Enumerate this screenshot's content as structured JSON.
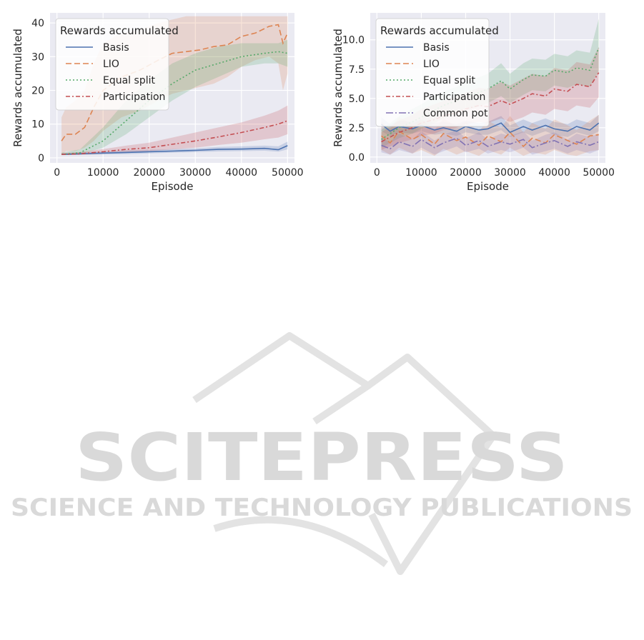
{
  "watermark": {
    "main": "SCITEPRESS",
    "sub": "SCIENCE AND TECHNOLOGY PUBLICATIONS",
    "color": "#d9d9d9"
  },
  "colors": {
    "panel_bg": "#eaeaf2",
    "grid": "#ffffff",
    "text": "#262626"
  },
  "chart_data": [
    {
      "type": "line",
      "xlabel": "Episode",
      "ylabel": "Rewards accumulated",
      "xlim": [
        -1500,
        51500
      ],
      "ylim": [
        -1.5,
        43
      ],
      "xticks": [
        0,
        10000,
        20000,
        30000,
        40000,
        50000
      ],
      "xtick_labels": [
        "0",
        "10000",
        "20000",
        "30000",
        "40000",
        "50000"
      ],
      "yticks": [
        0,
        10,
        20,
        30,
        40
      ],
      "ytick_labels": [
        "0",
        "10",
        "20",
        "30",
        "40"
      ],
      "grid": true,
      "legend": {
        "title": "Rewards accumulated",
        "placement": "upper-left"
      },
      "series": [
        {
          "name": "Basis",
          "color": "#4c72b0",
          "dash": "solid",
          "x": [
            1000,
            5000,
            10000,
            15000,
            20000,
            25000,
            30000,
            35000,
            40000,
            45000,
            48000,
            50000
          ],
          "y": [
            1,
            1.2,
            1.4,
            1.6,
            1.8,
            2.0,
            2.2,
            2.5,
            2.6,
            2.8,
            2.4,
            3.6
          ],
          "lower": [
            0.8,
            0.9,
            1.0,
            1.1,
            1.3,
            1.5,
            1.7,
            1.9,
            2.0,
            2.1,
            1.8,
            2.5
          ],
          "upper": [
            1.3,
            1.6,
            1.9,
            2.2,
            2.4,
            2.6,
            2.8,
            3.2,
            3.4,
            3.6,
            3.4,
            4.8
          ]
        },
        {
          "name": "LIO",
          "color": "#dd8452",
          "dash": "8 4",
          "x": [
            1000,
            2000,
            4000,
            6000,
            8000,
            10000,
            14000,
            18000,
            22000,
            25000,
            28000,
            31000,
            34000,
            37000,
            40000,
            43000,
            46000,
            48000,
            49000,
            50000
          ],
          "y": [
            5,
            7,
            7,
            9,
            15,
            20,
            24,
            26,
            29,
            31,
            31.5,
            32,
            33,
            33.5,
            36,
            37,
            39,
            39.5,
            34,
            37
          ],
          "lower": [
            1,
            2,
            2,
            3,
            5,
            8,
            12,
            14,
            17,
            19,
            20,
            21,
            22,
            24,
            27,
            29,
            30,
            28,
            20,
            25
          ],
          "upper": [
            12,
            15,
            17,
            20,
            28,
            34,
            37,
            38,
            40,
            41,
            42,
            42,
            42,
            42,
            42,
            42,
            42,
            42,
            42,
            42
          ]
        },
        {
          "name": "Equal split",
          "color": "#55a868",
          "dash": "2 3",
          "x": [
            1000,
            5000,
            10000,
            15000,
            20000,
            25000,
            30000,
            35000,
            40000,
            45000,
            48000,
            50000
          ],
          "y": [
            1,
            1.5,
            5,
            11,
            17,
            22,
            26,
            28,
            30,
            31,
            31.5,
            31
          ],
          "lower": [
            0.8,
            1.0,
            3,
            7,
            12,
            17,
            21,
            24,
            27,
            28,
            28,
            27
          ],
          "upper": [
            1.5,
            2.5,
            9,
            17,
            23,
            28,
            31,
            33,
            34,
            34,
            34,
            35
          ]
        },
        {
          "name": "Participation",
          "color": "#c44e52",
          "dash": "6 3 2 3",
          "x": [
            1000,
            5000,
            10000,
            15000,
            20000,
            25000,
            30000,
            35000,
            40000,
            45000,
            48000,
            50000
          ],
          "y": [
            1,
            1.2,
            1.8,
            2.5,
            3.0,
            4.0,
            5.0,
            6.2,
            7.5,
            9.0,
            10,
            11
          ],
          "lower": [
            0.8,
            0.9,
            1.2,
            1.6,
            2.0,
            2.5,
            3.0,
            3.8,
            4.5,
            5.5,
            6,
            7
          ],
          "upper": [
            1.4,
            1.7,
            2.6,
            3.6,
            4.5,
            6.0,
            7.5,
            9.0,
            10.5,
            12.5,
            14,
            15.5
          ]
        }
      ]
    },
    {
      "type": "line",
      "xlabel": "Episode",
      "ylabel": "Rewards accumulated",
      "xlim": [
        -1500,
        51500
      ],
      "ylim": [
        -0.5,
        12.3
      ],
      "xticks": [
        0,
        10000,
        20000,
        30000,
        40000,
        50000
      ],
      "xtick_labels": [
        "0",
        "10000",
        "20000",
        "30000",
        "40000",
        "50000"
      ],
      "yticks": [
        0,
        2.5,
        5,
        7.5,
        10
      ],
      "ytick_labels": [
        "0.0",
        "2.5",
        "5.0",
        "7.5",
        "10.0"
      ],
      "grid": true,
      "legend": {
        "title": "Rewards accumulated",
        "placement": "upper-left"
      },
      "series": [
        {
          "name": "Basis",
          "color": "#4c72b0",
          "dash": "solid",
          "x": [
            1000,
            3000,
            5000,
            8000,
            10000,
            13000,
            15000,
            18000,
            20000,
            23000,
            25000,
            28000,
            30000,
            33000,
            35000,
            38000,
            40000,
            43000,
            45000,
            48000,
            50000
          ],
          "y": [
            2.8,
            2.2,
            2.6,
            2.4,
            2.7,
            2.3,
            2.5,
            2.2,
            2.6,
            2.3,
            2.4,
            2.9,
            2.1,
            2.6,
            2.3,
            2.7,
            2.4,
            2.2,
            2.6,
            2.3,
            2.9
          ],
          "lower": [
            2.2,
            1.8,
            2.1,
            2.0,
            2.2,
            1.9,
            2.0,
            1.8,
            2.1,
            1.9,
            1.9,
            2.3,
            1.7,
            2.1,
            1.8,
            2.2,
            1.9,
            1.7,
            2.1,
            1.8,
            2.2
          ],
          "upper": [
            3.4,
            2.8,
            3.1,
            3.0,
            3.2,
            2.9,
            3.0,
            2.8,
            3.1,
            2.9,
            3.0,
            3.5,
            2.7,
            3.2,
            2.9,
            3.3,
            3.0,
            2.8,
            3.2,
            2.9,
            3.6
          ]
        },
        {
          "name": "LIO",
          "color": "#dd8452",
          "dash": "8 4",
          "x": [
            1000,
            3000,
            5000,
            8000,
            10000,
            13000,
            15000,
            18000,
            20000,
            23000,
            25000,
            28000,
            30000,
            33000,
            35000,
            38000,
            40000,
            43000,
            45000,
            48000,
            50000
          ],
          "y": [
            1.8,
            1.2,
            2.2,
            1.5,
            1.9,
            1.1,
            2.0,
            1.4,
            1.7,
            1.0,
            1.8,
            1.3,
            2.1,
            0.9,
            1.6,
            1.2,
            1.9,
            1.4,
            1.1,
            1.8,
            1.9
          ],
          "lower": [
            0.6,
            0.2,
            0.8,
            0.3,
            0.6,
            0.1,
            0.7,
            0.2,
            0.5,
            0.1,
            0.6,
            0.2,
            0.8,
            0.1,
            0.4,
            0.2,
            0.6,
            0.2,
            0.1,
            0.5,
            0.6
          ],
          "upper": [
            3.0,
            2.4,
            3.4,
            2.8,
            3.2,
            2.3,
            3.3,
            2.6,
            3.0,
            2.2,
            3.1,
            2.5,
            3.5,
            2.1,
            2.9,
            2.4,
            3.2,
            2.7,
            2.3,
            3.1,
            3.6
          ]
        },
        {
          "name": "Equal split",
          "color": "#55a868",
          "dash": "2 3",
          "x": [
            1000,
            3000,
            5000,
            8000,
            10000,
            13000,
            15000,
            18000,
            20000,
            23000,
            25000,
            28000,
            30000,
            33000,
            35000,
            38000,
            40000,
            43000,
            45000,
            48000,
            50000
          ],
          "y": [
            1.5,
            2.0,
            2.5,
            3.0,
            3.4,
            4.0,
            4.4,
            4.8,
            5.2,
            5.5,
            5.8,
            6.5,
            5.8,
            6.6,
            7.0,
            6.9,
            7.4,
            7.2,
            7.6,
            7.4,
            9.3
          ],
          "lower": [
            0.8,
            1.2,
            1.6,
            2.0,
            2.4,
            2.9,
            3.3,
            3.7,
            4.0,
            4.3,
            4.6,
            5.2,
            4.6,
            5.3,
            5.7,
            5.6,
            6.1,
            5.9,
            6.2,
            6.0,
            7.3
          ],
          "upper": [
            2.3,
            2.9,
            3.5,
            4.1,
            4.5,
            5.2,
            5.6,
            6.0,
            6.5,
            6.8,
            7.1,
            8.0,
            7.1,
            8.0,
            8.4,
            8.3,
            8.8,
            8.6,
            9.1,
            8.9,
            11.8
          ]
        },
        {
          "name": "Participation",
          "color": "#c44e52",
          "dash": "6 3 2 3",
          "x": [
            1000,
            3000,
            5000,
            8000,
            10000,
            13000,
            15000,
            18000,
            20000,
            23000,
            25000,
            28000,
            30000,
            33000,
            35000,
            38000,
            40000,
            43000,
            45000,
            48000,
            50000
          ],
          "y": [
            1.3,
            1.7,
            2.1,
            2.5,
            2.9,
            3.2,
            3.5,
            3.8,
            4.1,
            4.4,
            4.3,
            4.8,
            4.5,
            5.0,
            5.4,
            5.2,
            5.8,
            5.6,
            6.2,
            6.0,
            7.2
          ],
          "lower": [
            0.6,
            0.9,
            1.2,
            1.5,
            1.8,
            2.0,
            2.3,
            2.5,
            2.8,
            3.0,
            2.9,
            3.3,
            3.0,
            3.4,
            3.8,
            3.6,
            4.1,
            3.9,
            4.4,
            4.2,
            5.1
          ],
          "upper": [
            2.1,
            2.6,
            3.1,
            3.6,
            4.1,
            4.5,
            4.8,
            5.2,
            5.5,
            5.9,
            5.8,
            6.4,
            6.1,
            6.7,
            7.1,
            6.9,
            7.6,
            7.4,
            8.1,
            7.9,
            9.4
          ]
        },
        {
          "name": "Common pot",
          "color": "#8172b3",
          "dash": "10 3 2 3",
          "x": [
            1000,
            3000,
            5000,
            8000,
            10000,
            13000,
            15000,
            18000,
            20000,
            23000,
            25000,
            28000,
            30000,
            33000,
            35000,
            38000,
            40000,
            43000,
            45000,
            48000,
            50000
          ],
          "y": [
            1.0,
            0.7,
            1.3,
            0.9,
            1.5,
            0.8,
            1.2,
            1.6,
            1.0,
            1.4,
            0.9,
            1.3,
            1.1,
            1.5,
            0.8,
            1.2,
            1.4,
            0.9,
            1.3,
            1.0,
            1.3
          ],
          "lower": [
            0.4,
            0.2,
            0.6,
            0.3,
            0.8,
            0.2,
            0.5,
            0.9,
            0.4,
            0.7,
            0.3,
            0.6,
            0.4,
            0.8,
            0.2,
            0.5,
            0.7,
            0.3,
            0.6,
            0.3,
            0.6
          ],
          "upper": [
            1.6,
            1.3,
            2.0,
            1.5,
            2.2,
            1.4,
            1.9,
            2.3,
            1.6,
            2.1,
            1.5,
            2.0,
            1.8,
            2.2,
            1.4,
            1.9,
            2.1,
            1.5,
            2.0,
            1.7,
            2.0
          ]
        }
      ]
    }
  ]
}
